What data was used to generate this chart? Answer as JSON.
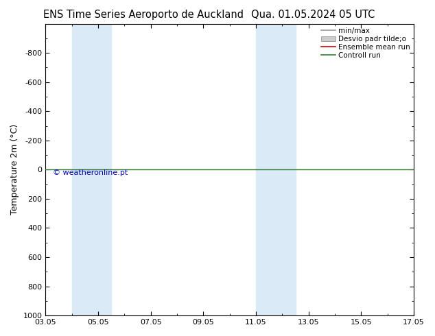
{
  "title_left": "ENS Time Series Aeroporto de Auckland",
  "title_right": "Qua. 01.05.2024 05 UTC",
  "ylabel": "Temperature 2m (°C)",
  "ylim_bottom": 1000,
  "ylim_top": -1000,
  "yticks": [
    -800,
    -600,
    -400,
    -200,
    0,
    200,
    400,
    600,
    800,
    1000
  ],
  "xlim_left": 3,
  "xlim_right": 17,
  "xtick_labels": [
    "03.05",
    "05.05",
    "07.05",
    "09.05",
    "11.05",
    "13.05",
    "15.05",
    "17.05"
  ],
  "xtick_positions": [
    3,
    5,
    7,
    9,
    11,
    13,
    15,
    17
  ],
  "shade_bands": [
    {
      "x_start": 4.0,
      "x_end": 5.5
    },
    {
      "x_start": 11.0,
      "x_end": 12.5
    }
  ],
  "shade_color": "#daeaf6",
  "control_run_y": 0,
  "control_run_color": "#2E7D2E",
  "ensemble_mean_color": "#CC0000",
  "minmax_color": "#999999",
  "desvio_color": "#cccccc",
  "legend_labels": [
    "min/max",
    "Desvio padr tilde;o",
    "Ensemble mean run",
    "Controll run"
  ],
  "watermark": "© weatheronline.pt",
  "watermark_color": "#0000BB",
  "background_color": "#ffffff",
  "plot_bg_color": "#ffffff",
  "title_fontsize": 10.5,
  "ylabel_fontsize": 9,
  "tick_fontsize": 8,
  "legend_fontsize": 7.5,
  "watermark_fontsize": 8
}
